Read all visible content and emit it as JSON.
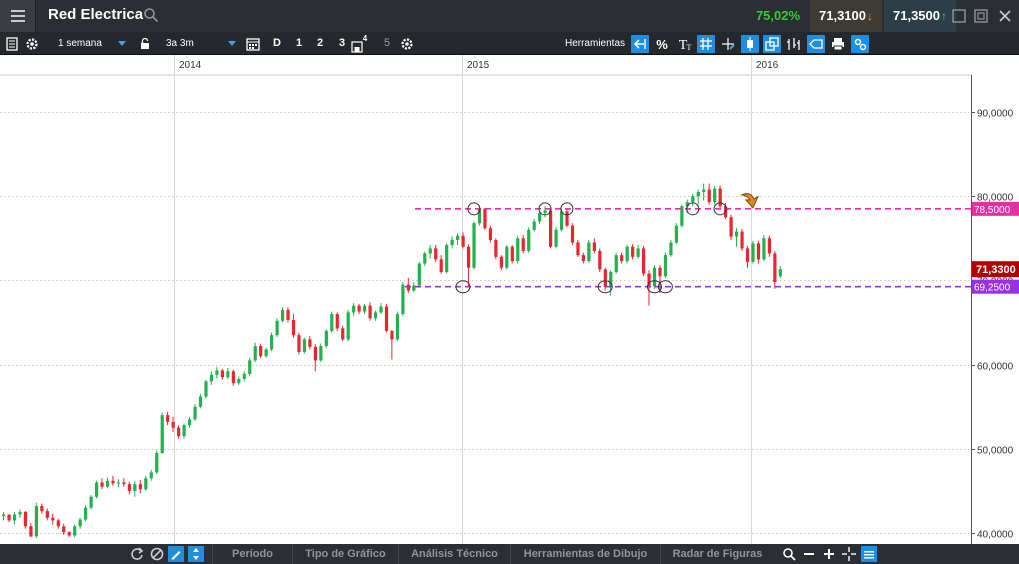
{
  "titlebar": {
    "title": "Red Electrica",
    "change_pct": "75,02%",
    "bid": "71,3100",
    "ask": "71,3500",
    "colors": {
      "change": "#33cc33",
      "bid_arrow": "#f29a2e",
      "ask_arrow": "#2ec4f2"
    }
  },
  "toolbar": {
    "period": "1 semana",
    "range": "3a 3m",
    "timeframes": [
      "D",
      "1",
      "2",
      "3",
      "4",
      "5"
    ],
    "tools_label": "Herramientas"
  },
  "bottombar": {
    "tabs": [
      "Período",
      "Tipo de Gráfico",
      "Análisis Técnico",
      "Herramientas de Dibujo",
      "Radar de Figuras"
    ]
  },
  "chart_data": {
    "type": "candlestick",
    "x_tick_labels": [
      "2014",
      "2015",
      "2016"
    ],
    "y_ticks": [
      40,
      50,
      60,
      70,
      80,
      90
    ],
    "y_tick_labels": [
      "40,0000",
      "50,0000",
      "60,0000",
      "70,0000",
      "80,0000",
      "90,0000"
    ],
    "ylim": [
      39.5,
      94.5
    ],
    "grid": true,
    "last_price": {
      "value": 71.33,
      "label": "71,3300",
      "color": "#b30000"
    },
    "lines": [
      {
        "value": 78.5,
        "label": "78,5000",
        "color": "#e52fa3",
        "style": "dashed"
      },
      {
        "value": 69.25,
        "label": "69,2500",
        "color": "#9b30e0",
        "style": "dashed"
      }
    ],
    "colors": {
      "up": "#22b14c",
      "down": "#e8262d"
    },
    "candles": [
      [
        42.0,
        42.5,
        41.5,
        42.2
      ],
      [
        42.2,
        42.0,
        41.3,
        41.5
      ],
      [
        41.5,
        42.5,
        41.0,
        42.2
      ],
      [
        42.2,
        42.8,
        41.8,
        42.5
      ],
      [
        42.5,
        42.6,
        40.5,
        40.8
      ],
      [
        40.8,
        41.2,
        39.5,
        39.6
      ],
      [
        39.6,
        43.6,
        39.4,
        43.2
      ],
      [
        43.2,
        43.5,
        42.3,
        42.6
      ],
      [
        42.6,
        42.9,
        41.5,
        41.8
      ],
      [
        41.8,
        42.3,
        41.0,
        41.5
      ],
      [
        41.5,
        41.7,
        40.5,
        40.8
      ],
      [
        40.8,
        41.1,
        39.8,
        40.1
      ],
      [
        40.1,
        40.2,
        39.5,
        39.7
      ],
      [
        39.7,
        41.0,
        39.5,
        40.8
      ],
      [
        40.8,
        41.8,
        40.5,
        41.6
      ],
      [
        41.6,
        43.3,
        41.4,
        43.0
      ],
      [
        43.0,
        44.5,
        42.8,
        44.3
      ],
      [
        44.3,
        46.2,
        44.1,
        46.0
      ],
      [
        46.0,
        46.5,
        45.2,
        45.5
      ],
      [
        45.5,
        46.6,
        45.3,
        46.2
      ],
      [
        46.2,
        46.8,
        45.6,
        45.9
      ],
      [
        45.9,
        46.4,
        45.4,
        46.0
      ],
      [
        46.0,
        46.5,
        45.5,
        45.8
      ],
      [
        45.8,
        46.1,
        44.6,
        45.0
      ],
      [
        45.0,
        46.2,
        44.3,
        45.8
      ],
      [
        45.8,
        46.3,
        44.7,
        45.2
      ],
      [
        45.2,
        46.8,
        45.0,
        46.5
      ],
      [
        46.5,
        47.5,
        46.2,
        47.2
      ],
      [
        47.2,
        49.8,
        47.0,
        49.5
      ],
      [
        49.5,
        54.3,
        49.4,
        54.0
      ],
      [
        54.0,
        54.4,
        52.8,
        53.2
      ],
      [
        53.2,
        53.8,
        52.0,
        52.5
      ],
      [
        52.5,
        52.8,
        51.2,
        51.5
      ],
      [
        51.5,
        53.0,
        51.2,
        52.8
      ],
      [
        52.8,
        53.8,
        52.5,
        53.5
      ],
      [
        53.5,
        55.3,
        53.3,
        55.0
      ],
      [
        55.0,
        56.5,
        54.8,
        56.2
      ],
      [
        56.2,
        58.2,
        56.0,
        58.0
      ],
      [
        58.0,
        59.2,
        57.6,
        58.8
      ],
      [
        58.8,
        59.7,
        58.4,
        59.3
      ],
      [
        59.3,
        59.5,
        58.2,
        58.5
      ],
      [
        58.5,
        59.6,
        58.3,
        59.2
      ],
      [
        59.2,
        59.4,
        57.5,
        57.8
      ],
      [
        57.8,
        58.6,
        57.6,
        58.3
      ],
      [
        58.3,
        59.2,
        58.0,
        58.9
      ],
      [
        58.9,
        60.8,
        58.6,
        60.5
      ],
      [
        60.5,
        62.6,
        60.3,
        62.2
      ],
      [
        62.2,
        62.5,
        60.8,
        61.0
      ],
      [
        61.0,
        62.0,
        60.8,
        61.8
      ],
      [
        61.8,
        63.8,
        61.6,
        63.5
      ],
      [
        63.5,
        65.5,
        63.3,
        65.2
      ],
      [
        65.2,
        66.8,
        65.0,
        66.5
      ],
      [
        66.5,
        66.8,
        65.0,
        65.3
      ],
      [
        65.3,
        66.0,
        63.2,
        63.5
      ],
      [
        63.5,
        63.8,
        61.2,
        61.5
      ],
      [
        61.5,
        63.2,
        61.3,
        63.0
      ],
      [
        63.0,
        63.4,
        61.8,
        62.1
      ],
      [
        62.1,
        62.4,
        59.2,
        60.5
      ],
      [
        60.5,
        62.5,
        60.3,
        62.2
      ],
      [
        62.2,
        64.2,
        62.0,
        64.0
      ],
      [
        64.0,
        66.3,
        63.8,
        66.0
      ],
      [
        66.0,
        66.2,
        64.0,
        64.3
      ],
      [
        64.3,
        64.6,
        62.8,
        63.0
      ],
      [
        63.0,
        66.5,
        62.8,
        66.2
      ],
      [
        66.2,
        67.3,
        65.8,
        67.0
      ],
      [
        67.0,
        67.2,
        66.0,
        66.3
      ],
      [
        66.3,
        67.2,
        66.0,
        67.0
      ],
      [
        67.0,
        67.4,
        65.2,
        65.5
      ],
      [
        65.5,
        66.4,
        65.2,
        66.2
      ],
      [
        66.2,
        67.3,
        66.0,
        66.9
      ],
      [
        66.9,
        67.2,
        63.8,
        64.0
      ],
      [
        64.0,
        64.1,
        60.6,
        63.0
      ],
      [
        63.0,
        66.3,
        62.8,
        66.0
      ],
      [
        66.0,
        69.8,
        65.8,
        69.5
      ],
      [
        69.5,
        70.3,
        68.5,
        68.8
      ],
      [
        68.8,
        69.8,
        68.6,
        69.4
      ],
      [
        69.4,
        72.2,
        69.2,
        72.0
      ],
      [
        72.0,
        73.4,
        71.7,
        73.2
      ],
      [
        73.2,
        74.2,
        72.6,
        73.8
      ],
      [
        73.8,
        74.2,
        72.2,
        72.5
      ],
      [
        72.5,
        73.0,
        70.8,
        71.0
      ],
      [
        71.0,
        74.4,
        70.8,
        74.2
      ],
      [
        74.2,
        75.2,
        73.8,
        74.8
      ],
      [
        74.8,
        75.6,
        74.2,
        75.3
      ],
      [
        75.3,
        75.7,
        73.8,
        74.0
      ],
      [
        74.0,
        74.3,
        69.2,
        71.5
      ],
      [
        71.5,
        77.0,
        71.3,
        76.8
      ],
      [
        76.8,
        78.8,
        76.5,
        78.5
      ],
      [
        78.5,
        78.6,
        76.0,
        76.2
      ],
      [
        76.2,
        76.5,
        74.5,
        74.8
      ],
      [
        74.8,
        75.0,
        72.5,
        72.8
      ],
      [
        72.8,
        73.0,
        71.2,
        71.5
      ],
      [
        71.5,
        74.2,
        71.3,
        74.0
      ],
      [
        74.0,
        74.2,
        72.0,
        72.3
      ],
      [
        72.3,
        75.3,
        72.0,
        75.0
      ],
      [
        75.0,
        75.4,
        73.2,
        73.5
      ],
      [
        73.5,
        76.3,
        73.3,
        76.0
      ],
      [
        76.0,
        77.3,
        75.8,
        77.0
      ],
      [
        77.0,
        78.2,
        76.7,
        78.0
      ],
      [
        78.0,
        78.8,
        77.5,
        78.3
      ],
      [
        78.3,
        78.6,
        73.8,
        74.0
      ],
      [
        74.0,
        76.3,
        73.8,
        76.0
      ],
      [
        76.0,
        78.5,
        75.8,
        78.2
      ],
      [
        78.2,
        78.5,
        76.3,
        76.5
      ],
      [
        76.5,
        76.8,
        74.2,
        74.5
      ],
      [
        74.5,
        74.8,
        72.8,
        73.0
      ],
      [
        73.0,
        73.3,
        72.0,
        72.3
      ],
      [
        72.3,
        74.8,
        72.1,
        74.5
      ],
      [
        74.5,
        75.0,
        73.2,
        73.5
      ],
      [
        73.5,
        73.8,
        71.0,
        71.3
      ],
      [
        71.3,
        71.5,
        68.8,
        69.2
      ],
      [
        69.2,
        71.2,
        68.2,
        71.0
      ],
      [
        71.0,
        73.3,
        70.8,
        73.0
      ],
      [
        73.0,
        73.3,
        72.0,
        72.3
      ],
      [
        72.3,
        74.2,
        72.0,
        74.0
      ],
      [
        74.0,
        74.3,
        72.5,
        72.8
      ],
      [
        72.8,
        74.2,
        72.6,
        73.8
      ],
      [
        73.8,
        74.1,
        70.5,
        70.8
      ],
      [
        70.8,
        71.2,
        67.0,
        69.3
      ],
      [
        69.3,
        71.8,
        69.0,
        71.5
      ],
      [
        71.5,
        71.8,
        68.5,
        70.5
      ],
      [
        70.5,
        73.3,
        70.3,
        73.0
      ],
      [
        73.0,
        74.8,
        72.8,
        74.5
      ],
      [
        74.5,
        76.8,
        74.3,
        76.5
      ],
      [
        76.5,
        79.0,
        76.3,
        78.8
      ],
      [
        78.8,
        79.6,
        78.0,
        79.3
      ],
      [
        79.3,
        80.3,
        78.8,
        80.0
      ],
      [
        80.0,
        80.8,
        79.0,
        80.5
      ],
      [
        80.5,
        81.5,
        79.5,
        80.8
      ],
      [
        80.8,
        81.5,
        79.0,
        79.3
      ],
      [
        79.3,
        81.2,
        79.0,
        80.9
      ],
      [
        80.9,
        81.3,
        78.6,
        78.8
      ],
      [
        78.8,
        79.2,
        77.3,
        77.5
      ],
      [
        77.5,
        77.8,
        74.8,
        75.2
      ],
      [
        75.2,
        76.2,
        74.0,
        75.8
      ],
      [
        75.8,
        76.1,
        73.5,
        73.8
      ],
      [
        73.8,
        74.1,
        71.5,
        72.2
      ],
      [
        72.2,
        74.7,
        72.0,
        74.4
      ],
      [
        74.4,
        74.7,
        72.0,
        72.5
      ],
      [
        72.5,
        75.4,
        72.3,
        75.0
      ],
      [
        75.0,
        75.3,
        72.8,
        73.2
      ],
      [
        73.2,
        73.5,
        69.0,
        69.8
      ],
      [
        70.5,
        71.7,
        70.3,
        71.33
      ]
    ]
  }
}
